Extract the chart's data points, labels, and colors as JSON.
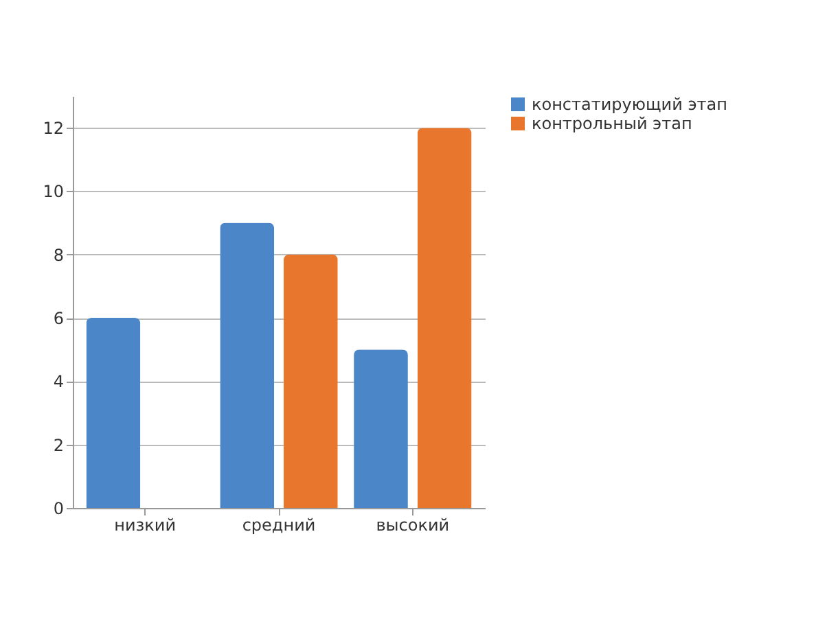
{
  "chart_data": {
    "type": "bar",
    "categories": [
      "низкий",
      "средний",
      "высокий"
    ],
    "series": [
      {
        "name": "констатирующий этап",
        "color": "#4a86c8",
        "values": [
          6,
          9,
          5
        ]
      },
      {
        "name": "контрольный этап",
        "color": "#e8762d",
        "values": [
          0,
          8,
          12
        ]
      }
    ],
    "ylim": [
      0,
      13
    ],
    "yticks": [
      0,
      2,
      4,
      6,
      8,
      10,
      12
    ],
    "grid": "y",
    "legend": "right"
  }
}
